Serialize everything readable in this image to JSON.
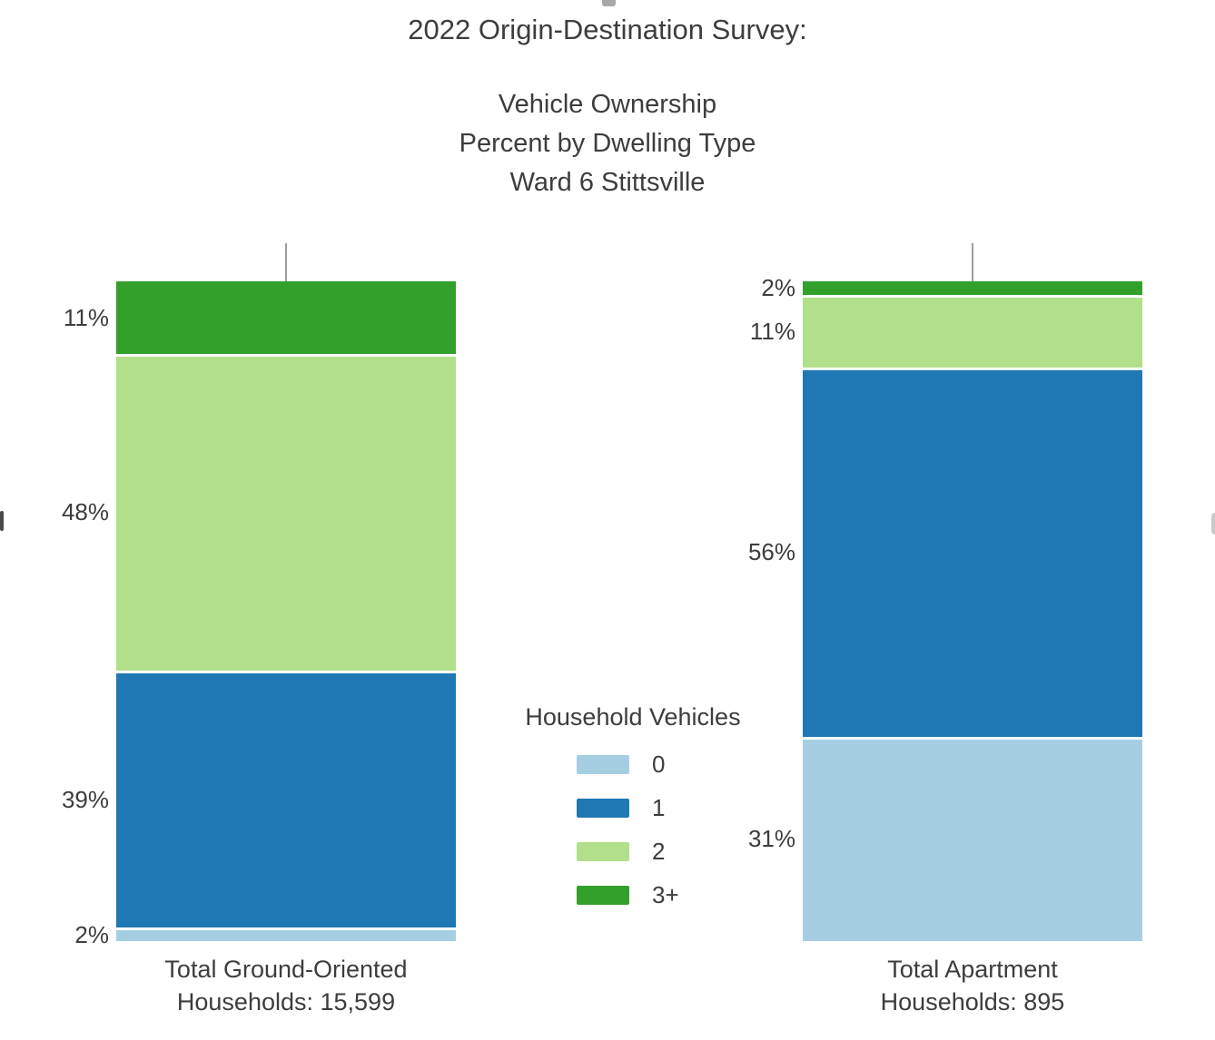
{
  "chart_data": {
    "type": "bar",
    "stacked": true,
    "units": "percent",
    "grid": false,
    "ylim": [
      0,
      100
    ],
    "title": "2022 Origin-Destination Survey:",
    "subtitle": [
      "Vehicle Ownership",
      "Percent by Dwelling Type",
      "Ward 6 Stittsville"
    ],
    "legend": {
      "title": "Household Vehicles",
      "position": "center-between-bars"
    },
    "series": [
      {
        "name": "0",
        "color": "#a6cee3",
        "values": [
          2,
          31
        ]
      },
      {
        "name": "1",
        "color": "#1f78b4",
        "values": [
          39,
          56
        ]
      },
      {
        "name": "2",
        "color": "#b2df8a",
        "values": [
          48,
          11
        ]
      },
      {
        "name": "3+",
        "color": "#33a02c",
        "values": [
          11,
          2
        ]
      }
    ],
    "series_order_note": "values arrays are [Total Ground-Oriented, Total Apartment]; bars stack bottom-to-top in series order",
    "bars": [
      {
        "category": "Total Ground-Oriented",
        "sublabel": "Households: 15,599"
      },
      {
        "category": "Total Apartment",
        "sublabel": "Households: 895"
      }
    ],
    "value_labels": [
      [
        "2%",
        "39%",
        "48%",
        "11%"
      ],
      [
        "31%",
        "56%",
        "11%",
        "2%"
      ]
    ]
  }
}
